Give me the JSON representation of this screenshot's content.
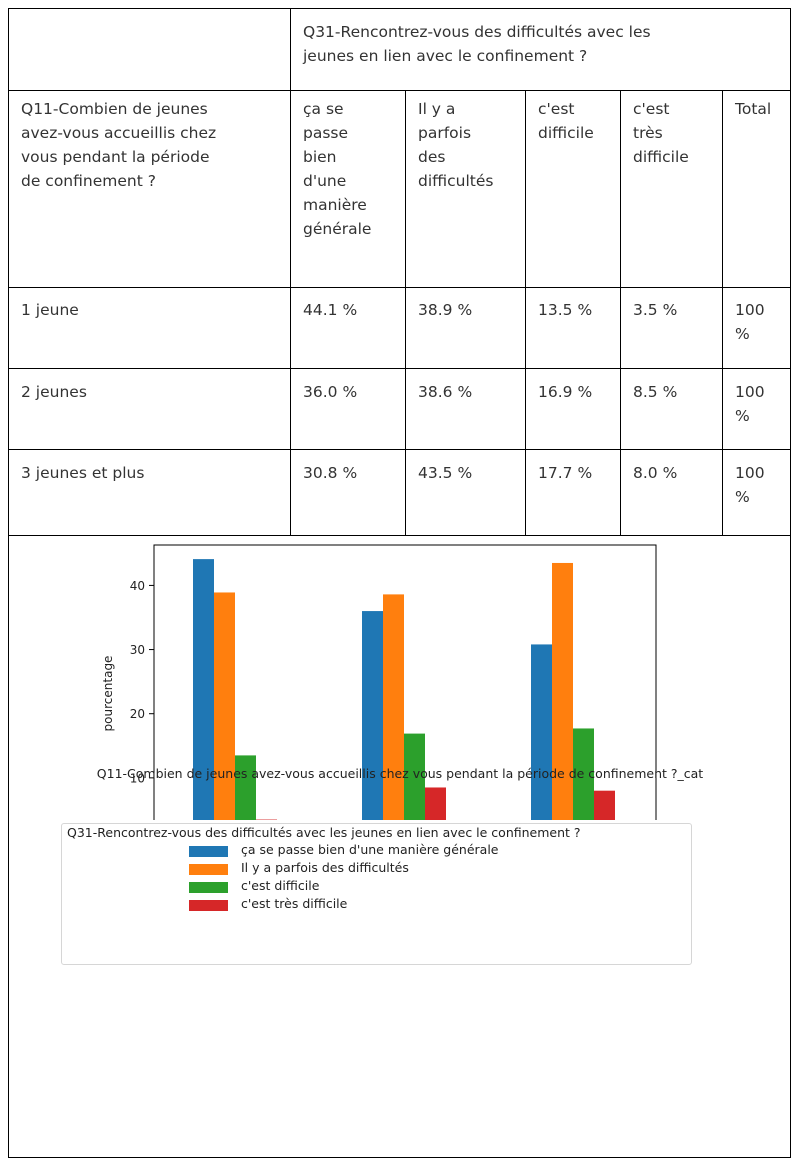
{
  "table": {
    "header_question": "Q31-Rencontrez-vous des difficultés avec les\njeunes en lien avec le confinement ?",
    "row_question": "Q11-Combien de jeunes\navez-vous accueillis chez\nvous pendant la période\nde confinement ?",
    "columns": [
      "ça se\npasse\nbien\nd'une\nmanière\ngénérale",
      "Il y a\nparfois\ndes\ndifficultés",
      "c'est\ndifficile",
      "c'est\ntrès\ndifficile",
      "Total"
    ],
    "rows": [
      {
        "label": "1 jeune",
        "values": [
          "44.1 %",
          "38.9 %",
          "13.5 %",
          "3.5 %"
        ],
        "total": "100\n%"
      },
      {
        "label": "2 jeunes",
        "values": [
          "36.0 %",
          "38.6 %",
          "16.9 %",
          "8.5 %"
        ],
        "total": "100\n%"
      },
      {
        "label": "3 jeunes et plus",
        "values": [
          "30.8 %",
          "43.5 %",
          "17.7 %",
          "8.0 %"
        ],
        "total": "100\n%"
      }
    ]
  },
  "chart_data": {
    "type": "bar",
    "categories": [
      "1 jeune",
      "2 jeunes",
      "3 jeunes et plus"
    ],
    "series": [
      {
        "name": "ça se passe bien d'une manière générale",
        "color": "#1f77b4",
        "values": [
          44.1,
          36.0,
          30.8
        ]
      },
      {
        "name": "Il y a parfois des difficultés",
        "color": "#ff7f0e",
        "values": [
          38.9,
          38.6,
          43.5
        ]
      },
      {
        "name": "c'est difficile",
        "color": "#2ca02c",
        "values": [
          13.5,
          16.9,
          17.7
        ]
      },
      {
        "name": "c'est très difficile",
        "color": "#d62728",
        "values": [
          3.5,
          8.5,
          8.0
        ]
      }
    ],
    "xlabel": "Q11-Combien de jeunes avez-vous accueillis chez vous pendant la période de confinement ?_cat",
    "ylabel": "pourcentage",
    "ylim": [
      0,
      46.3
    ],
    "yticks": [
      0,
      10,
      20,
      30,
      40
    ],
    "legend_title": "Q31-Rencontrez-vous des difficultés avec les jeunes en lien avec le confinement ?",
    "legend_position": "below",
    "grid": false
  }
}
